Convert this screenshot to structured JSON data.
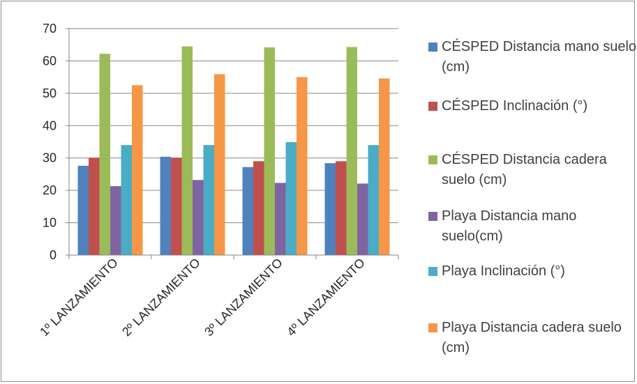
{
  "chart_data": {
    "type": "bar",
    "title": "",
    "xlabel": "",
    "ylabel": "",
    "ylim": [
      0,
      70
    ],
    "yticks": [
      0,
      10,
      20,
      30,
      40,
      50,
      60,
      70
    ],
    "grid": true,
    "legend_position": "right",
    "categories": [
      "1º LANZAMIENTO",
      "2º LANZAMIENTO",
      "3º LANZAMIENTO",
      "4º LANZAMIENTO"
    ],
    "series": [
      {
        "name": "CÉSPED Distancia mano suelo (cm)",
        "color": "#4f81bd",
        "values": [
          27.6,
          30.4,
          27.2,
          28.4
        ]
      },
      {
        "name": "CÉSPED Inclinación (°)",
        "color": "#c0504d",
        "values": [
          30.1,
          30.1,
          29.0,
          29.0
        ]
      },
      {
        "name": "CÉSPED Distancia cadera suelo (cm)",
        "color": "#9bbb59",
        "values": [
          62.2,
          64.5,
          64.2,
          64.3
        ]
      },
      {
        "name": "Playa Distancia mano suelo(cm)",
        "color": "#8064a2",
        "values": [
          21.3,
          23.2,
          22.3,
          22.1
        ]
      },
      {
        "name": "Playa Inclinación (°)",
        "color": "#4bacc6",
        "values": [
          34.0,
          34.0,
          34.9,
          34.0
        ]
      },
      {
        "name": "Playa Distancia cadera suelo (cm)",
        "color": "#f79646",
        "values": [
          52.5,
          55.9,
          55.0,
          54.6
        ]
      }
    ]
  },
  "legend": {
    "items": [
      {
        "label": "CÉSPED Distancia mano suelo (cm)",
        "color": "#4f81bd"
      },
      {
        "label": "CÉSPED Inclinación (°)",
        "color": "#c0504d"
      },
      {
        "label": "CÉSPED Distancia cadera suelo (cm)",
        "color": "#9bbb59"
      },
      {
        "label": "Playa Distancia mano suelo(cm)",
        "color": "#8064a2"
      },
      {
        "label": "Playa Inclinación (°)",
        "color": "#4bacc6"
      },
      {
        "label": "Playa Distancia cadera suelo (cm)",
        "color": "#f79646"
      }
    ]
  }
}
